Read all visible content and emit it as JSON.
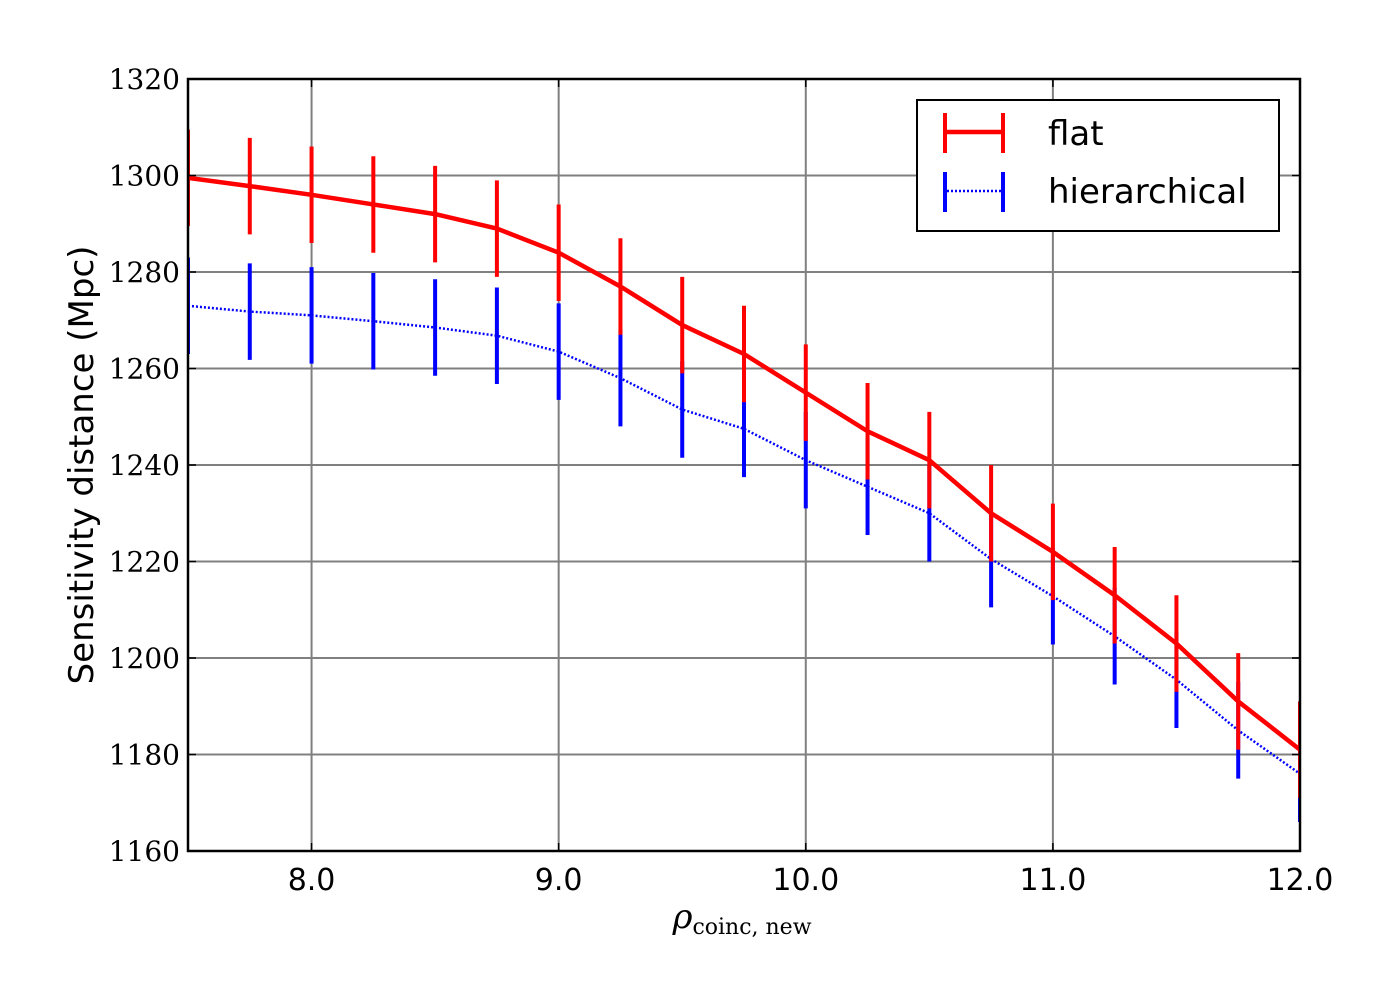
{
  "chart_data": {
    "type": "line",
    "title": "",
    "xlabel_main": "ρ",
    "xlabel_sub": "coinc, new",
    "ylabel": "Sensitivity distance (Mpc)",
    "xlim": [
      7.5,
      12.0
    ],
    "ylim": [
      1160,
      1320
    ],
    "xticks": [
      8.0,
      9.0,
      10.0,
      11.0,
      12.0
    ],
    "xtick_labels": [
      "8.0",
      "9.0",
      "10.0",
      "11.0",
      "12.0"
    ],
    "yticks": [
      1160,
      1180,
      1200,
      1220,
      1240,
      1260,
      1280,
      1300,
      1320
    ],
    "ytick_labels": [
      "1160",
      "1180",
      "1200",
      "1220",
      "1240",
      "1260",
      "1280",
      "1300",
      "1320"
    ],
    "grid": true,
    "legend_position": "top-right",
    "x": [
      7.5,
      7.75,
      8.0,
      8.25,
      8.5,
      8.75,
      9.0,
      9.25,
      9.5,
      9.75,
      10.0,
      10.25,
      10.5,
      10.75,
      11.0,
      11.25,
      11.5,
      11.75,
      12.0
    ],
    "series": [
      {
        "name": "flat",
        "color": "#ff0000",
        "style": "solid",
        "values": [
          1299.5,
          1297.8,
          1296.0,
          1294.0,
          1292.0,
          1289.0,
          1284.0,
          1277.0,
          1269.0,
          1263.0,
          1255.0,
          1247.0,
          1241.0,
          1230.0,
          1222.0,
          1213.0,
          1203.0,
          1191.0,
          1181.0
        ],
        "errors": [
          10,
          10,
          10,
          10,
          10,
          10,
          10,
          10,
          10,
          10,
          10,
          10,
          10,
          10,
          10,
          10,
          10,
          10,
          10
        ]
      },
      {
        "name": "hierarchical",
        "color": "#0000ff",
        "style": "dotted",
        "values": [
          1273.0,
          1271.8,
          1271.0,
          1269.8,
          1268.5,
          1266.8,
          1263.5,
          1258.0,
          1251.5,
          1247.5,
          1241.0,
          1235.5,
          1230.0,
          1220.5,
          1212.8,
          1204.5,
          1195.5,
          1185.0,
          1176.0
        ],
        "errors": [
          10,
          10,
          10,
          10,
          10,
          10,
          10,
          10,
          10,
          10,
          10,
          10,
          10,
          10,
          10,
          10,
          10,
          10,
          10
        ]
      }
    ]
  }
}
